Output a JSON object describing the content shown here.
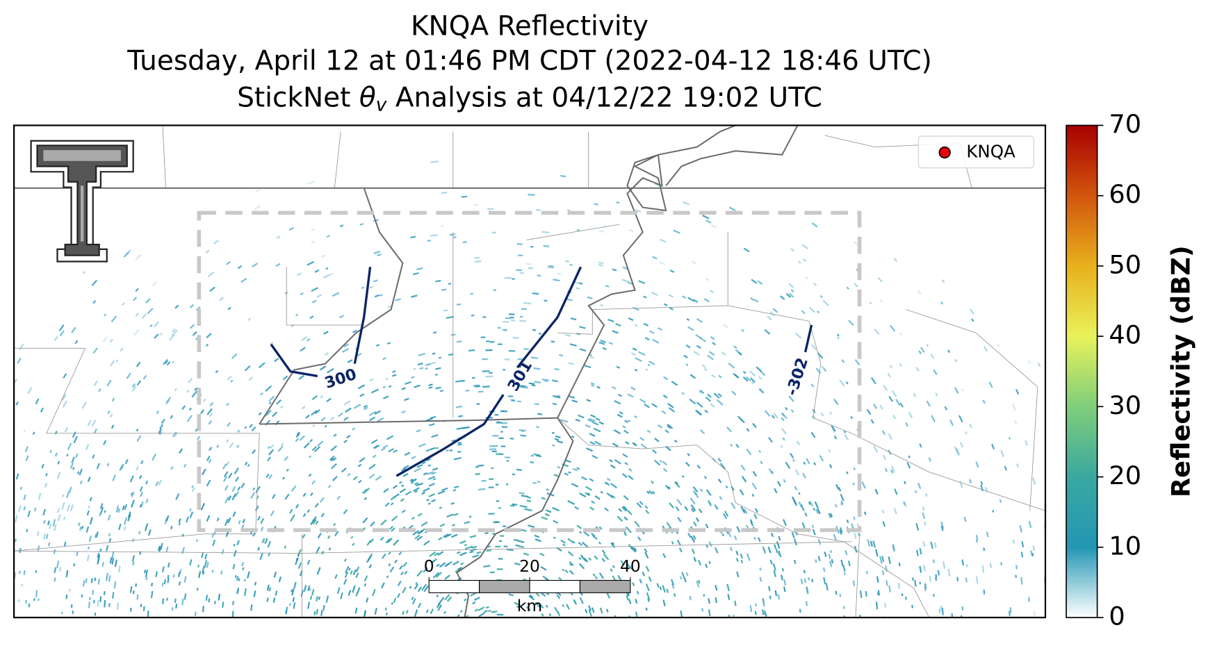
{
  "title": {
    "line1": "KNQA Reflectivity",
    "line2": "Tuesday, April 12 at 01:46 PM CDT (2022-04-12 18:46 UTC)",
    "line3": [
      "StickNet ",
      "θ",
      "v",
      " Analysis at 04/12/22 19:02 UTC"
    ]
  },
  "legend": {
    "label": "KNQA",
    "color": "#e8000b"
  },
  "contours": [
    "300",
    "301",
    "-302"
  ],
  "scale_bar": {
    "lim": [
      0,
      40
    ],
    "ticks": [
      0,
      20,
      40
    ],
    "unit": "km"
  },
  "colorbar": {
    "label": "Reflectivity (dBZ)",
    "lim": [
      0,
      70
    ],
    "ticks": [
      0,
      10,
      20,
      30,
      40,
      50,
      60,
      70
    ],
    "colormap": [
      "#ffffff",
      "#2296b4",
      "#3aa8a0",
      "#7fce7a",
      "#e9f25a",
      "#e8b01c",
      "#d2550e",
      "#a80000"
    ]
  }
}
